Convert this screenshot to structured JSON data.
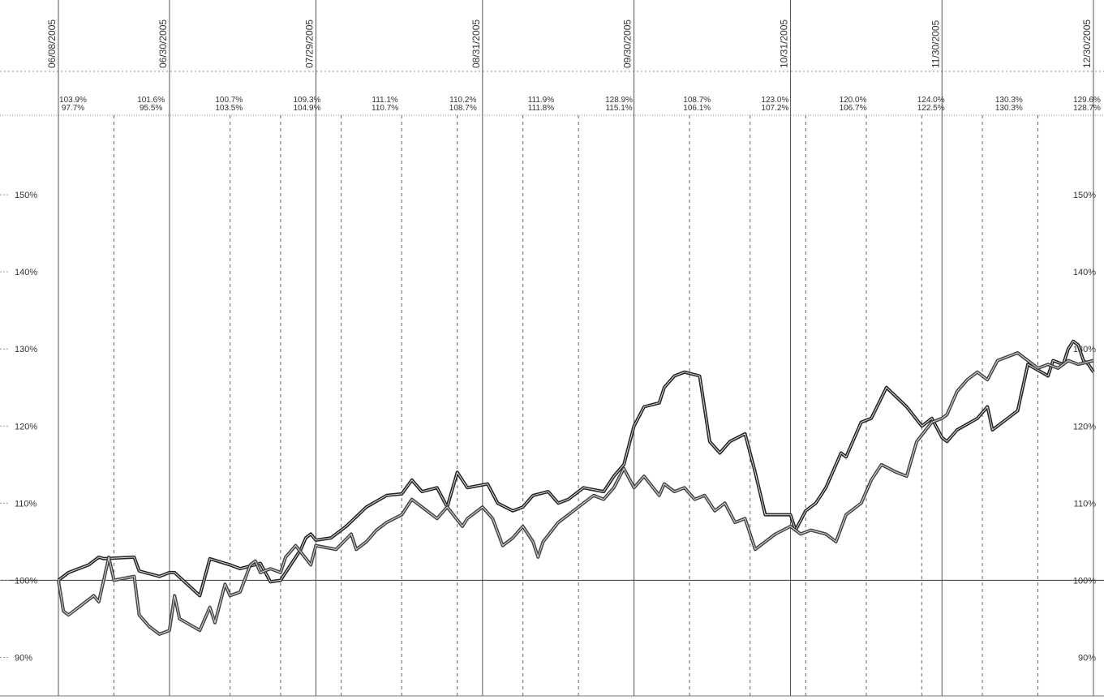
{
  "chart_data": {
    "type": "line",
    "date_labels": [
      {
        "x": "2005-06-08",
        "label": "06/08/2005"
      },
      {
        "x": "2005-06-30",
        "label": "06/30/2005"
      },
      {
        "x": "2005-07-29",
        "label": "07/29/2005"
      },
      {
        "x": "2005-08-31",
        "label": "08/31/2005"
      },
      {
        "x": "2005-09-30",
        "label": "09/30/2005"
      },
      {
        "x": "2005-10-31",
        "label": "10/31/2005"
      },
      {
        "x": "2005-11-30",
        "label": "11/30/2005"
      },
      {
        "x": "2005-12-30",
        "label": "12/30/2005"
      }
    ],
    "xlim": [
      "2005-06-08",
      "2005-12-30"
    ],
    "ylim": [
      85,
      160
    ],
    "y_ticks": [
      {
        "value": 90,
        "label": "90%"
      },
      {
        "value": 100,
        "label": "100%"
      },
      {
        "value": 110,
        "label": "110%"
      },
      {
        "value": 120,
        "label": "120%"
      },
      {
        "value": 130,
        "label": "130%"
      },
      {
        "value": 140,
        "label": "140%"
      },
      {
        "value": 150,
        "label": "150%"
      }
    ],
    "baseline": 100,
    "period_boundaries": [
      "2005-06-19",
      "2005-06-30",
      "2005-07-12",
      "2005-07-22",
      "2005-08-03",
      "2005-08-15",
      "2005-08-26",
      "2005-09-08",
      "2005-09-19",
      "2005-09-30",
      "2005-10-11",
      "2005-10-23",
      "2005-11-03",
      "2005-11-15",
      "2005-11-26",
      "2005-12-08",
      "2005-12-19"
    ],
    "period_stats": [
      {
        "x": "2005-06-13",
        "high": "103.9%",
        "low": "97.7%"
      },
      {
        "x": "2005-06-24",
        "high": "101.6%",
        "low": "95.5%"
      },
      {
        "x": "2005-07-06",
        "high": "100.7%",
        "low": "103.5%"
      },
      {
        "x": "2005-07-17",
        "high": "109.3%",
        "low": "104.9%"
      },
      {
        "x": "2005-07-28",
        "high": "111.1%",
        "low": "110.7%"
      },
      {
        "x": "2005-08-09",
        "high": "110.2%",
        "low": "108.7%"
      },
      {
        "x": "2005-08-20",
        "high": "111.9%",
        "low": "111.8%"
      },
      {
        "x": "2005-09-01",
        "high": "128.9%",
        "low": "115.1%"
      },
      {
        "x": "2005-09-13",
        "high": "108.7%",
        "low": "106.1%"
      },
      {
        "x": "2005-09-24",
        "high": "123.0%",
        "low": "107.2%"
      },
      {
        "x": "2005-10-06",
        "high": "120.0%",
        "low": "106.7%"
      },
      {
        "x": "2005-10-17",
        "high": "124.0%",
        "low": "122.5%"
      },
      {
        "x": "2005-10-29",
        "high": "130.3%",
        "low": "130.3%"
      },
      {
        "x": "2005-11-10",
        "high": "129.6%",
        "low": "128.7%"
      }
    ],
    "series": [
      {
        "color": "#222222",
        "values": [
          [
            "2005-06-08",
            100.0
          ],
          [
            "2005-06-10",
            101.0
          ],
          [
            "2005-06-14",
            102.0
          ],
          [
            "2005-06-16",
            103.0
          ],
          [
            "2005-06-17",
            102.8
          ],
          [
            "2005-06-23",
            103.0
          ],
          [
            "2005-06-24",
            101.2
          ],
          [
            "2005-06-28",
            100.5
          ],
          [
            "2005-06-30",
            101.0
          ],
          [
            "2005-07-01",
            101.0
          ],
          [
            "2005-07-06",
            98.0
          ],
          [
            "2005-07-08",
            102.8
          ],
          [
            "2005-07-12",
            102.0
          ],
          [
            "2005-07-14",
            101.5
          ],
          [
            "2005-07-18",
            102.2
          ],
          [
            "2005-07-20",
            99.8
          ],
          [
            "2005-07-22",
            100.0
          ],
          [
            "2005-07-26",
            104.0
          ],
          [
            "2005-07-27",
            105.5
          ],
          [
            "2005-07-28",
            106.0
          ],
          [
            "2005-07-29",
            105.2
          ],
          [
            "2005-08-01",
            105.5
          ],
          [
            "2005-08-04",
            107.0
          ],
          [
            "2005-08-08",
            109.5
          ],
          [
            "2005-08-12",
            111.0
          ],
          [
            "2005-08-15",
            111.2
          ],
          [
            "2005-08-17",
            113.0
          ],
          [
            "2005-08-19",
            111.5
          ],
          [
            "2005-08-22",
            112.0
          ],
          [
            "2005-08-24",
            109.5
          ],
          [
            "2005-08-26",
            114.0
          ],
          [
            "2005-08-28",
            112.0
          ],
          [
            "2005-09-01",
            112.5
          ],
          [
            "2005-09-03",
            110.0
          ],
          [
            "2005-09-06",
            109.0
          ],
          [
            "2005-09-08",
            109.5
          ],
          [
            "2005-09-10",
            111.0
          ],
          [
            "2005-09-13",
            111.5
          ],
          [
            "2005-09-15",
            110.0
          ],
          [
            "2005-09-17",
            110.5
          ],
          [
            "2005-09-20",
            112.0
          ],
          [
            "2005-09-24",
            111.5
          ],
          [
            "2005-09-26",
            113.5
          ],
          [
            "2005-09-28",
            115.0
          ],
          [
            "2005-09-30",
            120.0
          ],
          [
            "2005-10-02",
            122.5
          ],
          [
            "2005-10-05",
            123.0
          ],
          [
            "2005-10-06",
            125.0
          ],
          [
            "2005-10-08",
            126.5
          ],
          [
            "2005-10-10",
            127.0
          ],
          [
            "2005-10-13",
            126.5
          ],
          [
            "2005-10-15",
            118.0
          ],
          [
            "2005-10-17",
            116.5
          ],
          [
            "2005-10-19",
            118.0
          ],
          [
            "2005-10-22",
            119.0
          ],
          [
            "2005-10-24",
            114.0
          ],
          [
            "2005-10-26",
            108.5
          ],
          [
            "2005-10-31",
            108.5
          ],
          [
            "2005-11-01",
            106.5
          ],
          [
            "2005-11-03",
            109.0
          ],
          [
            "2005-11-05",
            110.0
          ],
          [
            "2005-11-07",
            112.0
          ],
          [
            "2005-11-10",
            116.5
          ],
          [
            "2005-11-11",
            116.0
          ],
          [
            "2005-11-14",
            120.5
          ],
          [
            "2005-11-16",
            121.0
          ],
          [
            "2005-11-19",
            125.0
          ],
          [
            "2005-11-23",
            122.5
          ],
          [
            "2005-11-26",
            120.0
          ],
          [
            "2005-11-28",
            121.0
          ],
          [
            "2005-11-30",
            118.5
          ],
          [
            "2005-12-01",
            118.0
          ],
          [
            "2005-12-03",
            119.5
          ],
          [
            "2005-12-07",
            121.0
          ],
          [
            "2005-12-09",
            122.5
          ],
          [
            "2005-12-10",
            119.5
          ],
          [
            "2005-12-13",
            121.0
          ],
          [
            "2005-12-15",
            122.0
          ],
          [
            "2005-12-17",
            128.0
          ],
          [
            "2005-12-21",
            126.5
          ],
          [
            "2005-12-22",
            128.5
          ],
          [
            "2005-12-24",
            128.0
          ],
          [
            "2005-12-25",
            130.0
          ],
          [
            "2005-12-26",
            131.0
          ],
          [
            "2005-12-27",
            130.5
          ],
          [
            "2005-12-28",
            128.5
          ],
          [
            "2005-12-29",
            128.0
          ],
          [
            "2005-12-30",
            127.0
          ]
        ]
      },
      {
        "color": "#444444",
        "values": [
          [
            "2005-06-08",
            100.0
          ],
          [
            "2005-06-09",
            96.0
          ],
          [
            "2005-06-10",
            95.5
          ],
          [
            "2005-06-12",
            96.5
          ],
          [
            "2005-06-15",
            98.0
          ],
          [
            "2005-06-16",
            97.2
          ],
          [
            "2005-06-18",
            103.0
          ],
          [
            "2005-06-19",
            100.0
          ],
          [
            "2005-06-23",
            100.5
          ],
          [
            "2005-06-24",
            95.5
          ],
          [
            "2005-06-26",
            94.0
          ],
          [
            "2005-06-28",
            93.0
          ],
          [
            "2005-06-30",
            93.5
          ],
          [
            "2005-07-01",
            98.0
          ],
          [
            "2005-07-02",
            95.0
          ],
          [
            "2005-07-06",
            93.5
          ],
          [
            "2005-07-08",
            96.5
          ],
          [
            "2005-07-09",
            94.5
          ],
          [
            "2005-07-11",
            99.5
          ],
          [
            "2005-07-12",
            98.0
          ],
          [
            "2005-07-14",
            98.5
          ],
          [
            "2005-07-16",
            102.0
          ],
          [
            "2005-07-17",
            102.5
          ],
          [
            "2005-07-18",
            101.0
          ],
          [
            "2005-07-20",
            101.5
          ],
          [
            "2005-07-22",
            101.0
          ],
          [
            "2005-07-23",
            103.0
          ],
          [
            "2005-07-25",
            104.5
          ],
          [
            "2005-07-28",
            102.0
          ],
          [
            "2005-07-29",
            104.5
          ],
          [
            "2005-08-02",
            104.0
          ],
          [
            "2005-08-05",
            106.0
          ],
          [
            "2005-08-06",
            104.0
          ],
          [
            "2005-08-08",
            105.0
          ],
          [
            "2005-08-10",
            106.5
          ],
          [
            "2005-08-12",
            107.5
          ],
          [
            "2005-08-15",
            108.5
          ],
          [
            "2005-08-17",
            110.5
          ],
          [
            "2005-08-19",
            109.5
          ],
          [
            "2005-08-22",
            108.0
          ],
          [
            "2005-08-24",
            109.5
          ],
          [
            "2005-08-27",
            107.0
          ],
          [
            "2005-08-28",
            108.0
          ],
          [
            "2005-08-31",
            109.5
          ],
          [
            "2005-09-02",
            108.0
          ],
          [
            "2005-09-04",
            104.5
          ],
          [
            "2005-09-06",
            105.5
          ],
          [
            "2005-09-08",
            107.0
          ],
          [
            "2005-09-10",
            105.0
          ],
          [
            "2005-09-11",
            103.0
          ],
          [
            "2005-09-12",
            105.0
          ],
          [
            "2005-09-15",
            107.5
          ],
          [
            "2005-09-17",
            108.5
          ],
          [
            "2005-09-20",
            110.0
          ],
          [
            "2005-09-22",
            111.0
          ],
          [
            "2005-09-24",
            110.5
          ],
          [
            "2005-09-26",
            112.0
          ],
          [
            "2005-09-28",
            114.5
          ],
          [
            "2005-09-30",
            112.0
          ],
          [
            "2005-10-02",
            113.5
          ],
          [
            "2005-10-05",
            111.0
          ],
          [
            "2005-10-06",
            112.5
          ],
          [
            "2005-10-08",
            111.5
          ],
          [
            "2005-10-10",
            112.0
          ],
          [
            "2005-10-12",
            110.5
          ],
          [
            "2005-10-14",
            111.0
          ],
          [
            "2005-10-16",
            109.0
          ],
          [
            "2005-10-18",
            110.0
          ],
          [
            "2005-10-20",
            107.5
          ],
          [
            "2005-10-22",
            108.0
          ],
          [
            "2005-10-24",
            104.0
          ],
          [
            "2005-10-26",
            105.0
          ],
          [
            "2005-10-28",
            106.0
          ],
          [
            "2005-10-31",
            107.0
          ],
          [
            "2005-11-02",
            106.0
          ],
          [
            "2005-11-04",
            106.5
          ],
          [
            "2005-11-07",
            106.0
          ],
          [
            "2005-11-09",
            105.0
          ],
          [
            "2005-11-11",
            108.5
          ],
          [
            "2005-11-14",
            110.0
          ],
          [
            "2005-11-16",
            113.0
          ],
          [
            "2005-11-18",
            115.0
          ],
          [
            "2005-11-21",
            114.0
          ],
          [
            "2005-11-23",
            113.5
          ],
          [
            "2005-11-25",
            118.0
          ],
          [
            "2005-11-28",
            120.5
          ],
          [
            "2005-11-30",
            121.0
          ],
          [
            "2005-12-01",
            121.5
          ],
          [
            "2005-12-03",
            124.5
          ],
          [
            "2005-12-05",
            126.0
          ],
          [
            "2005-12-07",
            127.0
          ],
          [
            "2005-12-09",
            126.0
          ],
          [
            "2005-12-11",
            128.5
          ],
          [
            "2005-12-13",
            129.0
          ],
          [
            "2005-12-15",
            129.5
          ],
          [
            "2005-12-17",
            128.5
          ],
          [
            "2005-12-19",
            127.5
          ],
          [
            "2005-12-21",
            128.0
          ],
          [
            "2005-12-23",
            127.5
          ],
          [
            "2005-12-25",
            128.5
          ],
          [
            "2005-12-27",
            128.0
          ],
          [
            "2005-12-30",
            128.5
          ]
        ]
      }
    ]
  }
}
